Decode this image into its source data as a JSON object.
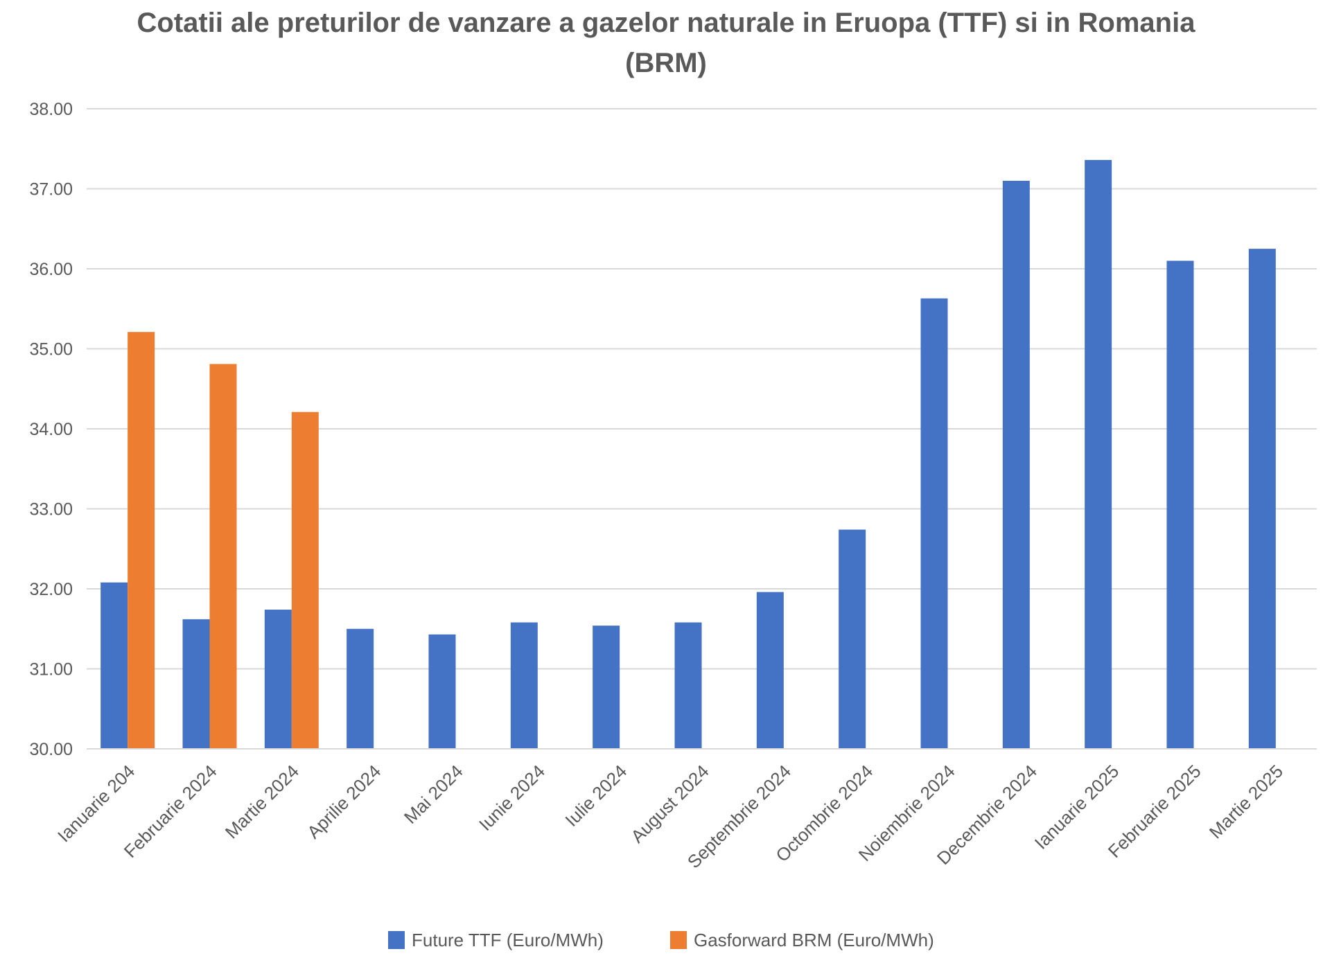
{
  "chart_data": {
    "type": "bar",
    "title": "Cotatii ale preturilor de vanzare a gazelor naturale in Eruopa (TTF) si in Romania (BRM)",
    "title_lines": [
      "Cotatii ale preturilor de vanzare a gazelor naturale in Eruopa (TTF) si in Romania",
      "(BRM)"
    ],
    "categories": [
      "Ianuarie 204",
      "Februarie 2024",
      "Martie 2024",
      "Aprilie 2024",
      "Mai 2024",
      "Iunie 2024",
      "Iulie 2024",
      "August 2024",
      "Septembrie 2024",
      "Octombrie 2024",
      "Noiembrie 2024",
      "Decembrie 2024",
      "Ianuarie 2025",
      "Februarie 2025",
      "Martie 2025"
    ],
    "series": [
      {
        "name": "Future TTF (Euro/MWh)",
        "color": "#4472C4",
        "values": [
          32.08,
          31.62,
          31.74,
          31.5,
          31.43,
          31.58,
          31.54,
          31.58,
          31.96,
          32.74,
          35.63,
          37.1,
          37.36,
          36.1,
          36.25
        ]
      },
      {
        "name": "Gasforward BRM (Euro/MWh)",
        "color": "#ED7D31",
        "values": [
          35.21,
          34.81,
          34.21,
          null,
          null,
          null,
          null,
          null,
          null,
          null,
          null,
          null,
          null,
          null,
          null
        ]
      }
    ],
    "ylim": [
      30,
      38
    ],
    "yticks": [
      "30.00",
      "31.00",
      "32.00",
      "33.00",
      "34.00",
      "35.00",
      "36.00",
      "37.00",
      "38.00"
    ],
    "xlabel": "",
    "ylabel": "",
    "grid": true,
    "legend": "bottom",
    "gridColor": "#d9d9d9"
  }
}
